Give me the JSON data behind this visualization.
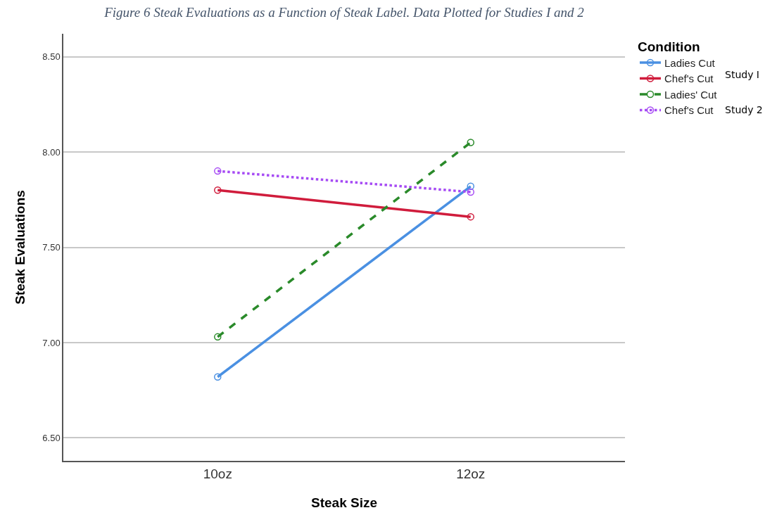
{
  "chart_data": {
    "type": "line",
    "title": "Figure 6 Steak Evaluations as a Function of Steak Label. Data Plotted for Studies I and 2",
    "xlabel": "Steak Size",
    "ylabel": "Steak Evaluations",
    "legend_title": "Condition",
    "categories": [
      "10oz",
      "12oz"
    ],
    "series": [
      {
        "name": "Ladies Cut",
        "color": "#4a90e2",
        "values": [
          6.82,
          7.82
        ],
        "line_style": "solid"
      },
      {
        "name": "Chef's Cut",
        "color": "#d01c3c",
        "values": [
          7.8,
          7.66
        ],
        "line_style": "solid"
      },
      {
        "name": "Ladies' Cut",
        "color": "#2a8a2a",
        "values": [
          7.03,
          8.05
        ],
        "line_style": "dashed"
      },
      {
        "name": "Chef's Cut",
        "color": "#a64bf4",
        "values": [
          7.9,
          7.79
        ],
        "line_style": "dotted"
      }
    ],
    "ylim": [
      6.38,
      8.62
    ],
    "yticks": [
      {
        "value": 6.5,
        "label": "6.50"
      },
      {
        "value": 7,
        "label": "7.00"
      },
      {
        "value": 7.5,
        "label": "7.50"
      },
      {
        "value": 8,
        "label": "8.00"
      },
      {
        "value": 8.5,
        "label": "8.50"
      }
    ],
    "grid": "y",
    "legend": "top right",
    "marker": "circle",
    "annotations": [
      "Study I",
      "Study 2"
    ]
  }
}
